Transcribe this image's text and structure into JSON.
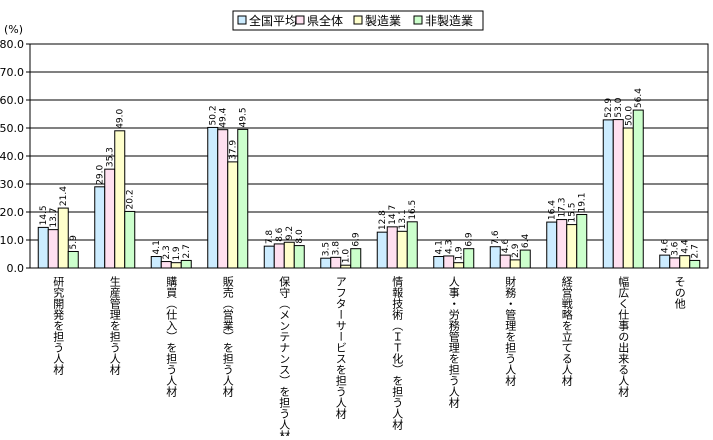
{
  "chart_data": {
    "type": "bar",
    "unit_label": "(%)",
    "ylim": [
      0,
      80
    ],
    "y_ticks": [
      "0.0",
      "10.0",
      "20.0",
      "30.0",
      "40.0",
      "50.0",
      "60.0",
      "70.0",
      "80.0"
    ],
    "grid": true,
    "legend_position": "top-center",
    "categories": [
      "研究開発を担う人材",
      "生産管理を担う人材",
      "購買（仕入）を担う人材",
      "販売（営業）を担う人材",
      "保守（メンテナンス）を担う人材",
      "アフターサービスを担う人材",
      "情報技術（ＩＴ化）を担う人材",
      "人事・労務管理を担う人材",
      "財務・管理を担う人材",
      "経営戦略を立てる人材",
      "幅広く仕事の出来る人材",
      "その他"
    ],
    "series": [
      {
        "name": "全国平均",
        "color": "#CCECFF",
        "values": [
          14.5,
          29.0,
          4.1,
          50.2,
          7.8,
          3.5,
          12.8,
          4.1,
          7.6,
          16.4,
          52.9,
          4.6
        ]
      },
      {
        "name": "県全体",
        "color": "#FFE0F0",
        "values": [
          13.7,
          35.3,
          2.3,
          49.4,
          8.6,
          3.8,
          14.7,
          4.3,
          4.6,
          17.3,
          53.0,
          3.6
        ]
      },
      {
        "name": "製造業",
        "color": "#FFFFCC",
        "values": [
          21.4,
          49.0,
          1.9,
          37.9,
          9.2,
          1.0,
          13.1,
          1.9,
          2.9,
          15.5,
          50.0,
          4.4
        ]
      },
      {
        "name": "非製造業",
        "color": "#CCFFCC",
        "values": [
          5.9,
          20.2,
          2.7,
          49.5,
          8.0,
          6.9,
          16.5,
          6.9,
          6.4,
          19.1,
          56.4,
          2.7
        ]
      }
    ],
    "value_labels": [
      [
        "14.5",
        "13.7",
        "21.4",
        "5.9"
      ],
      [
        "29.0",
        "35.3",
        "49.0",
        "20.2"
      ],
      [
        "4.1",
        "2.3",
        "1.9",
        "2.7"
      ],
      [
        "50.2",
        "49.4",
        "37.9",
        "49.5"
      ],
      [
        "7.8",
        "8.6",
        "9.2",
        "8.0"
      ],
      [
        "3.5",
        "3.8",
        "1.0",
        "6.9"
      ],
      [
        "12.8",
        "14.7",
        "13.1",
        "16.5"
      ],
      [
        "4.1",
        "4.3",
        "1.9",
        "6.9"
      ],
      [
        "7.6",
        "4.6",
        "2.9",
        "6.4"
      ],
      [
        "16.4",
        "17.3",
        "15.5",
        "19.1"
      ],
      [
        "52.9",
        "53.0",
        "50.0",
        "56.4"
      ],
      [
        "4.6",
        "3.6",
        "4.4",
        "2.7"
      ]
    ]
  }
}
